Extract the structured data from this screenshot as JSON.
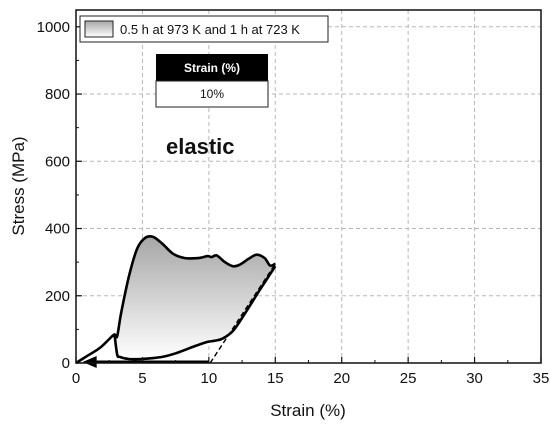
{
  "chart_data": {
    "type": "line",
    "xlabel": "Strain (%)",
    "ylabel": "Stress (MPa)",
    "xlim": [
      0,
      35
    ],
    "ylim": [
      0,
      1050
    ],
    "x_ticks": [
      0,
      5,
      10,
      15,
      20,
      25,
      30,
      35
    ],
    "y_ticks": [
      0,
      200,
      400,
      600,
      800,
      1000
    ],
    "grid": true,
    "legend_position": "top-left",
    "series": [
      {
        "name": "0.5 h at 973 K and 1 h at 723 K",
        "loading": [
          [
            0,
            0
          ],
          [
            0.8,
            20
          ],
          [
            1.8,
            45
          ],
          [
            2.6,
            75
          ],
          [
            2.9,
            85
          ],
          [
            3.1,
            80
          ],
          [
            3.4,
            150
          ],
          [
            4.0,
            260
          ],
          [
            4.6,
            340
          ],
          [
            5.2,
            372
          ],
          [
            5.8,
            375
          ],
          [
            6.5,
            355
          ],
          [
            7.3,
            325
          ],
          [
            8.2,
            312
          ],
          [
            9.2,
            312
          ],
          [
            9.9,
            318
          ],
          [
            10.2,
            315
          ],
          [
            10.6,
            320
          ],
          [
            11.2,
            300
          ],
          [
            11.8,
            288
          ],
          [
            12.3,
            292
          ],
          [
            13.0,
            310
          ],
          [
            13.6,
            322
          ],
          [
            14.2,
            312
          ],
          [
            14.6,
            290
          ],
          [
            15.0,
            295
          ]
        ],
        "unloading": [
          [
            15.0,
            288
          ],
          [
            13.8,
            215
          ],
          [
            12.6,
            140
          ],
          [
            11.8,
            95
          ],
          [
            11.0,
            72
          ],
          [
            10.4,
            66
          ],
          [
            9.8,
            62
          ],
          [
            8.8,
            48
          ],
          [
            7.6,
            30
          ],
          [
            6.5,
            18
          ],
          [
            5.0,
            12
          ],
          [
            4.0,
            12
          ],
          [
            3.3,
            18
          ],
          [
            3.1,
            25
          ],
          [
            2.9,
            85
          ]
        ],
        "return_path": [
          [
            10.0,
            0
          ],
          [
            0.5,
            0
          ]
        ],
        "elastic_recovery_line": [
          [
            10.1,
            0
          ],
          [
            15.0,
            295
          ]
        ]
      }
    ],
    "inset_table": {
      "header": "Strain (%)",
      "value": "10%"
    },
    "annotation": "elastic",
    "colors": {
      "curve": "#000000",
      "fill_top": "#b8b8b8",
      "fill_bottom": "#ffffff",
      "grid": "#b8b8b8",
      "table_header_bg": "#000000"
    }
  }
}
